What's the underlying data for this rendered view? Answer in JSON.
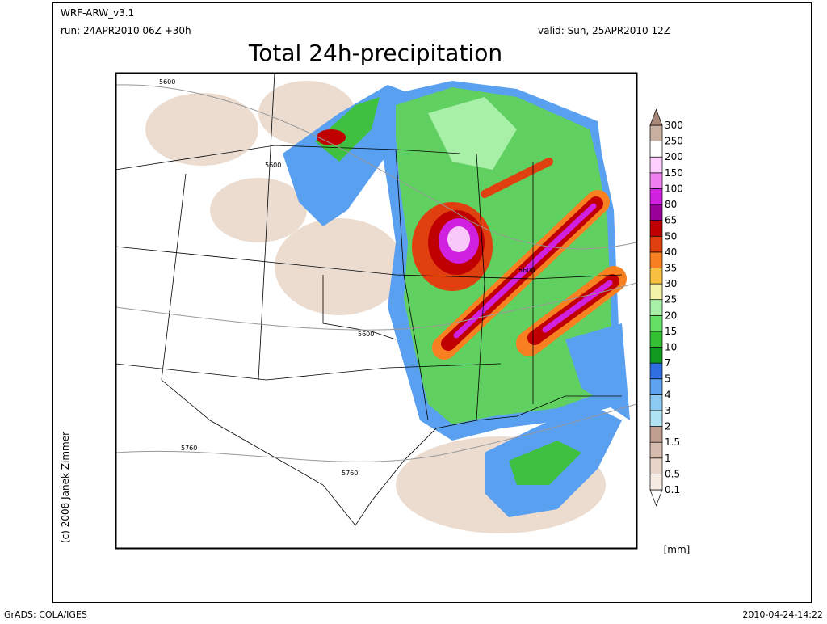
{
  "header": {
    "model": "WRF-ARW_v3.1",
    "run": "run: 24APR2010 06Z +30h",
    "valid": "valid: Sun, 25APR2010 12Z",
    "title": "Total 24h-precipitation"
  },
  "map": {
    "contour_labels": [
      "5600",
      "5600",
      "5600",
      "5600",
      "5760",
      "5760"
    ]
  },
  "colorbar": {
    "levels": [
      "0.1",
      "0.5",
      "1",
      "1.5",
      "2",
      "3",
      "4",
      "5",
      "7",
      "10",
      "15",
      "20",
      "25",
      "30",
      "35",
      "40",
      "50",
      "65",
      "80",
      "100",
      "150",
      "200",
      "250",
      "300"
    ],
    "colors": [
      "#ffffff",
      "#f6ebe3",
      "#e9d6ca",
      "#d6bcae",
      "#bf9e90",
      "#b0e4f2",
      "#8ccaf2",
      "#5ea4f0",
      "#2f6ee0",
      "#109a20",
      "#34c034",
      "#64e064",
      "#a8f0a8",
      "#f4f4a8",
      "#f8c040",
      "#f88020",
      "#e04010",
      "#c00000",
      "#9a009a",
      "#d020e0",
      "#f080f0",
      "#ffd0ff",
      "#ffffff",
      "#c8b0a0",
      "#a88878"
    ],
    "unit": "[mm]"
  },
  "footer": {
    "credit": "(c) 2008 Janek Zimmer",
    "software": "GrADS: COLA/IGES",
    "timestamp": "2010-04-24-14:22"
  }
}
